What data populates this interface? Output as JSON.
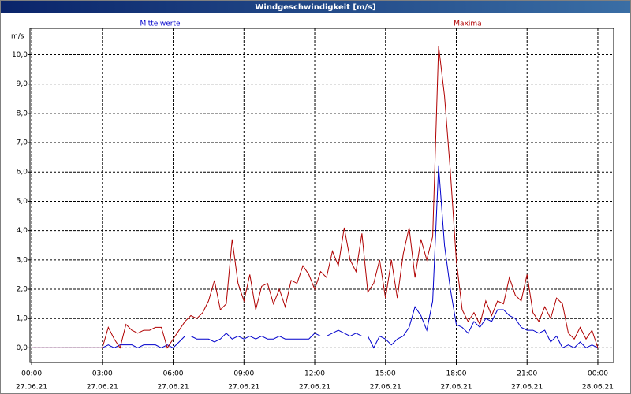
{
  "chart_data": {
    "type": "line",
    "title": "Windgeschwindigkeit [m/s]",
    "y_label": "m/s",
    "legend": "top",
    "grid": true,
    "xlim": [
      -0.07,
      24.67
    ],
    "ylim": [
      -0.5,
      10.9
    ],
    "xticks": [
      {
        "value": 0,
        "label": [
          "00:00",
          "27.06.21"
        ]
      },
      {
        "value": 3,
        "label": [
          "03:00",
          "27.06.21"
        ]
      },
      {
        "value": 6,
        "label": [
          "06:00",
          "27.06.21"
        ]
      },
      {
        "value": 9,
        "label": [
          "09:00",
          "27.06.21"
        ]
      },
      {
        "value": 12,
        "label": [
          "12:00",
          "27.06.21"
        ]
      },
      {
        "value": 15,
        "label": [
          "15:00",
          "27.06.21"
        ]
      },
      {
        "value": 18,
        "label": [
          "18:00",
          "27.06.21"
        ]
      },
      {
        "value": 21,
        "label": [
          "21:00",
          "27.06.21"
        ]
      },
      {
        "value": 24,
        "label": [
          "00:00",
          "28.06.21"
        ]
      }
    ],
    "yticks": [
      {
        "value": 0,
        "label": "0,0"
      },
      {
        "value": 1,
        "label": "1,0"
      },
      {
        "value": 2,
        "label": "2,0"
      },
      {
        "value": 3,
        "label": "3,0"
      },
      {
        "value": 4,
        "label": "4,0"
      },
      {
        "value": 5,
        "label": "5,0"
      },
      {
        "value": 6,
        "label": "6,0"
      },
      {
        "value": 7,
        "label": "7,0"
      },
      {
        "value": 8,
        "label": "8,0"
      },
      {
        "value": 9,
        "label": "9,0"
      },
      {
        "value": 10,
        "label": "10,0"
      }
    ],
    "x": [
      0,
      0.25,
      0.5,
      0.75,
      1,
      1.25,
      1.5,
      1.75,
      2,
      2.25,
      2.5,
      2.75,
      3,
      3.25,
      3.5,
      3.75,
      4,
      4.25,
      4.5,
      4.75,
      5,
      5.25,
      5.5,
      5.75,
      6,
      6.25,
      6.5,
      6.75,
      7,
      7.25,
      7.5,
      7.75,
      8,
      8.25,
      8.5,
      8.75,
      9,
      9.25,
      9.5,
      9.75,
      10,
      10.25,
      10.5,
      10.75,
      11,
      11.25,
      11.5,
      11.75,
      12,
      12.25,
      12.5,
      12.75,
      13,
      13.25,
      13.5,
      13.75,
      14,
      14.25,
      14.5,
      14.75,
      15,
      15.25,
      15.5,
      15.75,
      16,
      16.25,
      16.5,
      16.75,
      17,
      17.25,
      17.5,
      17.75,
      18,
      18.25,
      18.5,
      18.75,
      19,
      19.25,
      19.5,
      19.75,
      20,
      20.25,
      20.5,
      20.75,
      21,
      21.25,
      21.5,
      21.75,
      22,
      22.25,
      22.5,
      22.75,
      23,
      23.25,
      23.5,
      23.75,
      24
    ],
    "series": [
      {
        "name": "Mittelwerte",
        "color": "#0000cc",
        "values": [
          0,
          0,
          0,
          0,
          0,
          0,
          0,
          0,
          0,
          0,
          0,
          0,
          0,
          0.1,
          0,
          0.1,
          0.1,
          0.1,
          0,
          0.1,
          0.1,
          0.1,
          0,
          0.1,
          0,
          0.2,
          0.4,
          0.4,
          0.3,
          0.3,
          0.3,
          0.2,
          0.3,
          0.5,
          0.3,
          0.4,
          0.3,
          0.4,
          0.3,
          0.4,
          0.3,
          0.3,
          0.4,
          0.3,
          0.3,
          0.3,
          0.3,
          0.3,
          0.5,
          0.4,
          0.4,
          0.5,
          0.6,
          0.5,
          0.4,
          0.5,
          0.4,
          0.4,
          0,
          0.4,
          0.3,
          0.1,
          0.3,
          0.4,
          0.7,
          1.4,
          1.1,
          0.6,
          1.6,
          6.2,
          3.5,
          2.0,
          0.8,
          0.7,
          0.5,
          0.9,
          0.7,
          1.0,
          0.9,
          1.3,
          1.3,
          1.1,
          1.0,
          0.7,
          0.6,
          0.6,
          0.5,
          0.6,
          0.2,
          0.4,
          0,
          0.1,
          0,
          0.2,
          0,
          0.1,
          0
        ]
      },
      {
        "name": "Maxima",
        "color": "#b00000",
        "values": [
          0,
          0,
          0,
          0,
          0,
          0,
          0,
          0,
          0,
          0,
          0,
          0,
          0,
          0.7,
          0.3,
          0,
          0.8,
          0.6,
          0.5,
          0.6,
          0.6,
          0.7,
          0.7,
          0,
          0.3,
          0.6,
          0.9,
          1.1,
          1.0,
          1.2,
          1.6,
          2.3,
          1.3,
          1.5,
          3.7,
          2.2,
          1.6,
          2.5,
          1.3,
          2.1,
          2.2,
          1.5,
          2.0,
          1.4,
          2.3,
          2.2,
          2.8,
          2.5,
          2.0,
          2.6,
          2.4,
          3.3,
          2.8,
          4.1,
          3.0,
          2.6,
          3.9,
          1.9,
          2.2,
          3.0,
          1.7,
          3.0,
          1.7,
          3.2,
          4.1,
          2.4,
          3.7,
          3.0,
          3.8,
          10.3,
          8.6,
          6.0,
          3.0,
          1.3,
          0.9,
          1.2,
          0.8,
          1.6,
          1.1,
          1.6,
          1.5,
          2.4,
          1.8,
          1.6,
          2.5,
          1.2,
          0.9,
          1.4,
          1.0,
          1.7,
          1.5,
          0.5,
          0.3,
          0.7,
          0.3,
          0.6,
          0.0
        ]
      }
    ]
  }
}
